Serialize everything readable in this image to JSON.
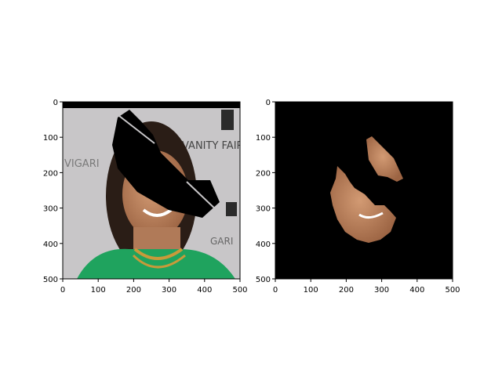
{
  "chart_data": [
    {
      "type": "image",
      "content": "masked face photo",
      "xlim": [
        0,
        500
      ],
      "ylim": [
        500,
        0
      ],
      "xticks": [
        0,
        100,
        200,
        300,
        400,
        500
      ],
      "yticks": [
        0,
        100,
        200,
        300,
        400,
        500
      ],
      "embedded_text": [
        "VIGARI",
        "VANITY FAIR",
        "GARI"
      ],
      "colors": {
        "background": "#c8c6c8",
        "shirt": "#1fa35e",
        "skin": "#b07a58",
        "hair": "#2a1d16",
        "mask": "#000000"
      }
    },
    {
      "type": "image",
      "content": "segmented face region on black",
      "xlim": [
        0,
        500
      ],
      "ylim": [
        500,
        0
      ],
      "xticks": [
        0,
        100,
        200,
        300,
        400,
        500
      ],
      "yticks": [
        0,
        100,
        200,
        300,
        400,
        500
      ],
      "colors": {
        "background": "#000000",
        "skin": "#b5774e"
      }
    }
  ]
}
